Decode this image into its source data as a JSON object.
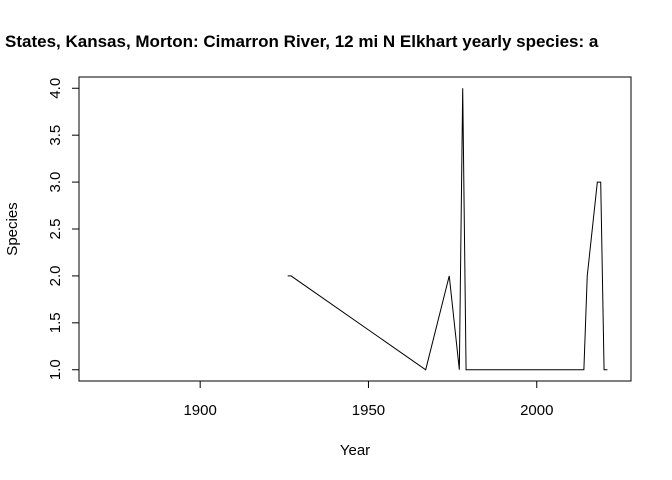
{
  "chart_data": {
    "type": "line",
    "title": "States, Kansas, Morton: Cimarron River, 12 mi N Elkhart yearly species: a",
    "xlabel": "Year",
    "ylabel": "Species",
    "xlim": [
      1864,
      2028
    ],
    "ylim": [
      0.88,
      4.12
    ],
    "xticks": [
      1900,
      1950,
      2000
    ],
    "yticks": [
      1.0,
      1.5,
      2.0,
      2.5,
      3.0,
      3.5,
      4.0
    ],
    "xtick_labels": [
      "1900",
      "1950",
      "2000"
    ],
    "ytick_labels": [
      "1.0",
      "1.5",
      "2.0",
      "2.5",
      "3.0",
      "3.5",
      "4.0"
    ],
    "grid": false,
    "series": [
      {
        "name": "Species",
        "x": [
          1926,
          1927,
          1967,
          1974,
          1977,
          1978,
          1979,
          1980,
          2014,
          2015,
          2018,
          2019,
          2020,
          2021
        ],
        "values": [
          2,
          2,
          1,
          2,
          1,
          4,
          1,
          1,
          1,
          2,
          3,
          3,
          1,
          1
        ]
      }
    ]
  }
}
